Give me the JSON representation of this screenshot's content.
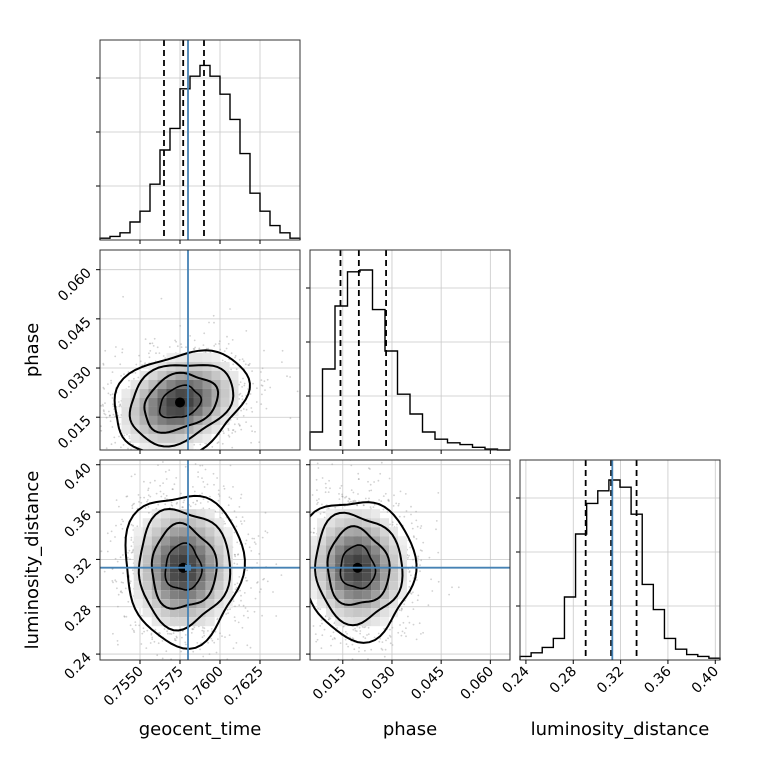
{
  "chart_data": {
    "type": "corner",
    "parameters": [
      {
        "name": "geocent_time",
        "label": "geocent_time",
        "range": [
          0.7525,
          0.765
        ],
        "ticks": [
          0.755,
          0.7575,
          0.76,
          0.7625
        ],
        "tick_labels": [
          "0.7550",
          "0.7575",
          "0.7600",
          "0.7625"
        ],
        "truth": 0.758,
        "quantiles": [
          0.7565,
          0.7577,
          0.759
        ]
      },
      {
        "name": "phase",
        "label": "phase",
        "range": [
          0.005,
          0.066
        ],
        "ticks": [
          0.015,
          0.03,
          0.045,
          0.06
        ],
        "tick_labels": [
          "0.015",
          "0.030",
          "0.045",
          "0.060"
        ],
        "truth": null,
        "quantiles": [
          0.0143,
          0.0199,
          0.0282
        ]
      },
      {
        "name": "luminosity_distance",
        "label": "luminosity_distance",
        "range": [
          0.235,
          0.404
        ],
        "ticks": [
          0.24,
          0.28,
          0.32,
          0.36,
          0.4
        ],
        "tick_labels": [
          "0.24",
          "0.28",
          "0.32",
          "0.36",
          "0.40"
        ],
        "truth": 0.313,
        "quantiles": [
          0.2905,
          0.312,
          0.3335
        ]
      }
    ],
    "histograms": {
      "geocent_time": [
        0.01,
        0.02,
        0.04,
        0.1,
        0.16,
        0.31,
        0.5,
        0.62,
        0.84,
        0.91,
        0.97,
        0.91,
        0.81,
        0.67,
        0.48,
        0.26,
        0.16,
        0.08,
        0.04,
        0.01
      ],
      "phase": [
        0.1,
        0.45,
        0.8,
        0.99,
        1.0,
        0.78,
        0.55,
        0.31,
        0.2,
        0.1,
        0.06,
        0.04,
        0.03,
        0.015,
        0.005,
        0.0
      ],
      "luminosity_distance": [
        0.02,
        0.04,
        0.07,
        0.12,
        0.35,
        0.7,
        0.87,
        0.94,
        1.0,
        0.96,
        0.81,
        0.42,
        0.28,
        0.12,
        0.06,
        0.03,
        0.02,
        0.01
      ]
    },
    "pairs": [
      {
        "x": "geocent_time",
        "y": "phase",
        "center": [
          0.7575,
          0.0195
        ],
        "spread": [
          0.0017,
          0.0065
        ],
        "corr": -0.25
      },
      {
        "x": "geocent_time",
        "y": "luminosity_distance",
        "center": [
          0.7577,
          0.313
        ],
        "spread": [
          0.0015,
          0.026
        ],
        "corr": 0.0
      },
      {
        "x": "phase",
        "y": "luminosity_distance",
        "center": [
          0.0195,
          0.313
        ],
        "spread": [
          0.007,
          0.024
        ],
        "corr": 0.05
      }
    ],
    "truth_color": "#4682b4",
    "grid": true
  }
}
